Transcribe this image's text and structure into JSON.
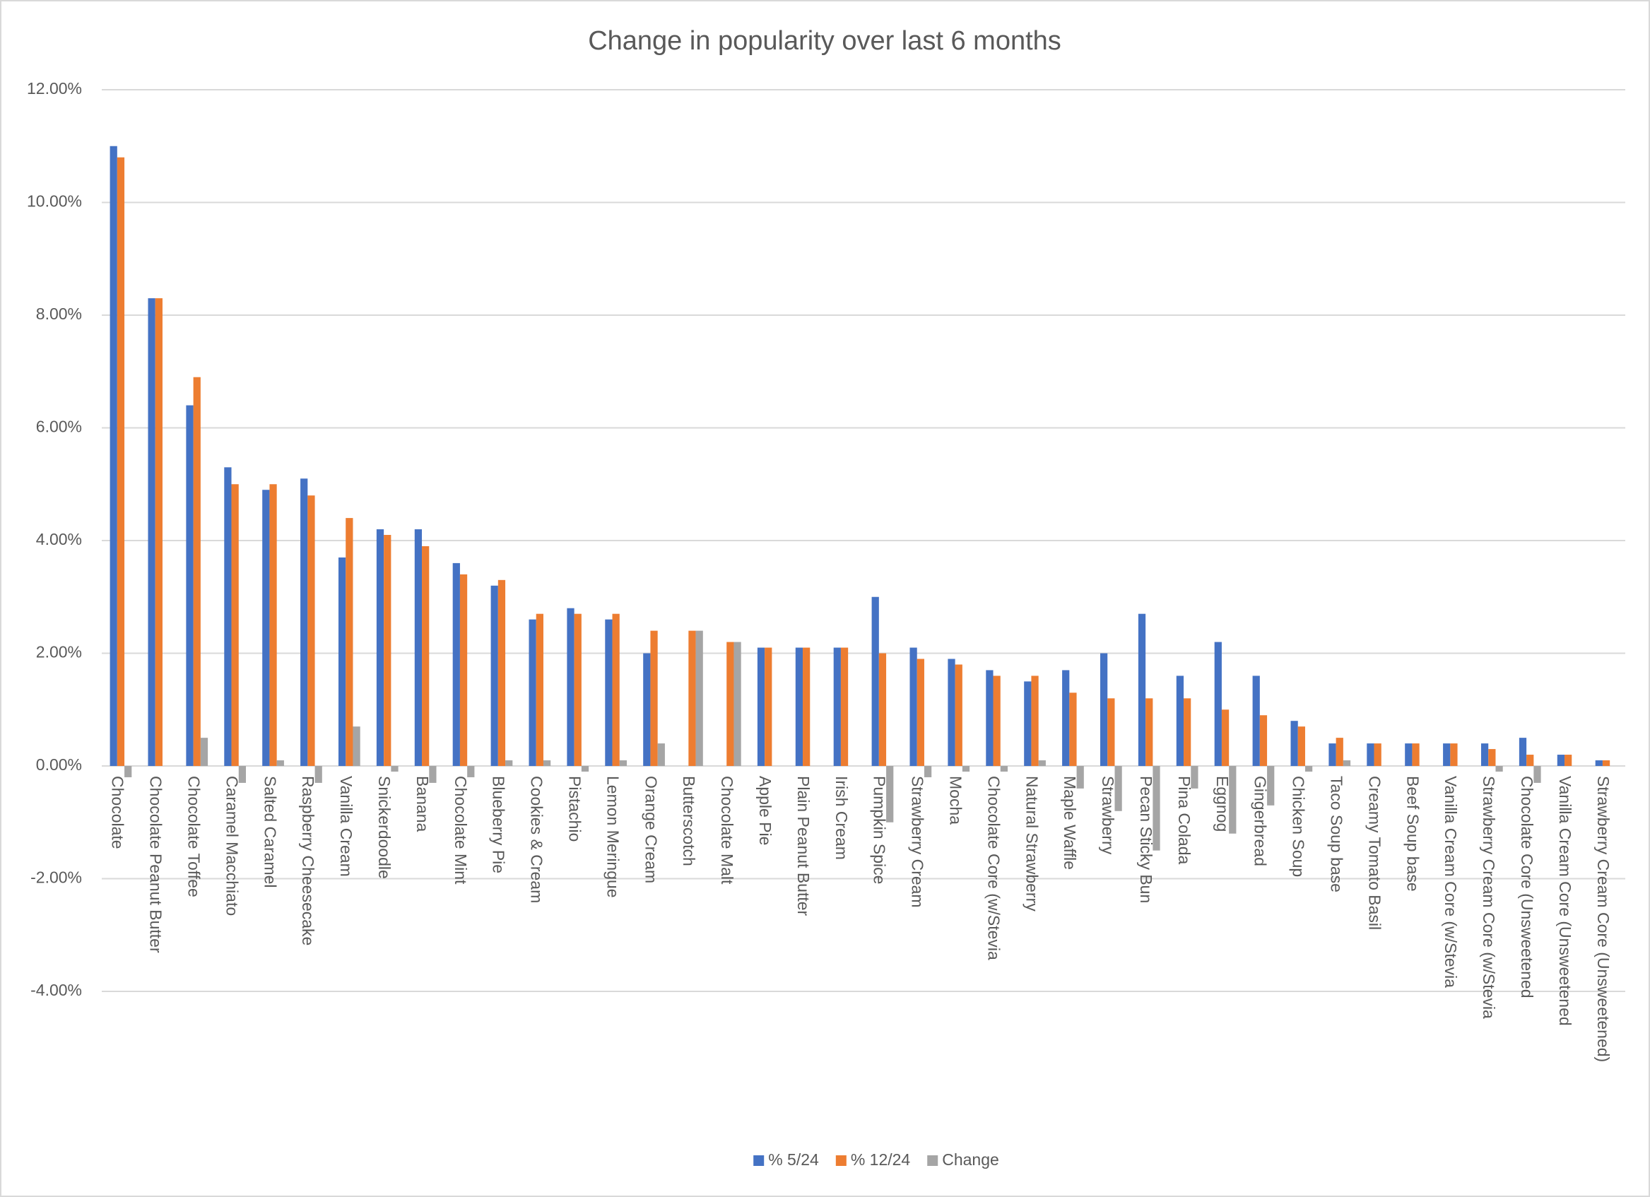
{
  "chart_data": {
    "type": "bar",
    "title": "Change in popularity over last 6 months",
    "categories": [
      "Chocolate",
      "Chocolate Peanut Butter",
      "Chocolate Toffee",
      "Caramel Macchiato",
      "Salted Caramel",
      "Raspberry Cheesecake",
      "Vanilla Cream",
      "Snickerdoodle",
      "Banana",
      "Chocolate Mint",
      "Blueberry Pie",
      "Cookies & Cream",
      "Pistachio",
      "Lemon Meringue",
      "Orange Cream",
      "Butterscotch",
      "Chocolate Malt",
      "Apple Pie",
      "Plain Peanut Butter",
      "Irish Cream",
      "Pumpkin Spice",
      "Strawberry Cream",
      "Mocha",
      "Chocolate Core (w/Stevia",
      "Natural Strawberry",
      "Maple Waffle",
      "Strawberry",
      "Pecan Sticky Bun",
      "Pina Colada",
      "Eggnog",
      "Gingerbread",
      "Chicken Soup",
      "Taco Soup base",
      "Creamy Tomato Basil",
      "Beef Soup base",
      "Vanilla Cream Core (w/Stevia",
      "Strawberry Cream Core (w/Stevia",
      "Chocolate Core (Unsweetened",
      "Vanilla Cream Core (Unsweetened",
      "Strawberry Cream Core (Unsweetened)"
    ],
    "series": [
      {
        "name": "% 5/24",
        "color": "#4472c4",
        "values": [
          11.0,
          8.3,
          6.4,
          5.3,
          4.9,
          5.1,
          3.7,
          4.2,
          4.2,
          3.6,
          3.2,
          2.6,
          2.8,
          2.6,
          2.0,
          0,
          0,
          2.1,
          2.1,
          2.1,
          3.0,
          2.1,
          1.9,
          1.7,
          1.5,
          1.7,
          2.0,
          2.7,
          1.6,
          2.2,
          1.6,
          0.8,
          0.4,
          0.4,
          0.4,
          0.4,
          0.4,
          0.5,
          0.2,
          0.1
        ]
      },
      {
        "name": "% 12/24",
        "color": "#ed7d31",
        "values": [
          10.8,
          8.3,
          6.9,
          5.0,
          5.0,
          4.8,
          4.4,
          4.1,
          3.9,
          3.4,
          3.3,
          2.7,
          2.7,
          2.7,
          2.4,
          2.4,
          2.2,
          2.1,
          2.1,
          2.1,
          2.0,
          1.9,
          1.8,
          1.6,
          1.6,
          1.3,
          1.2,
          1.2,
          1.2,
          1.0,
          0.9,
          0.7,
          0.5,
          0.4,
          0.4,
          0.4,
          0.3,
          0.2,
          0.2,
          0.1
        ]
      },
      {
        "name": "Change",
        "color": "#a5a5a5",
        "values": [
          -0.2,
          0,
          0.5,
          -0.3,
          0.1,
          -0.3,
          0.7,
          -0.1,
          -0.3,
          -0.2,
          0.1,
          0.1,
          -0.1,
          0.1,
          0.4,
          2.4,
          2.2,
          0,
          0,
          0,
          -1.0,
          -0.2,
          -0.1,
          -0.1,
          0.1,
          -0.4,
          -0.8,
          -1.5,
          -0.4,
          -1.2,
          -0.7,
          -0.1,
          0.1,
          0,
          0,
          0,
          -0.1,
          -0.3,
          0,
          0
        ]
      }
    ],
    "ylim": [
      -4,
      12
    ],
    "yticks": [
      {
        "value": -4,
        "label": "-4.00%"
      },
      {
        "value": -2,
        "label": "-2.00%"
      },
      {
        "value": 0,
        "label": "0.00%"
      },
      {
        "value": 2,
        "label": "2.00%"
      },
      {
        "value": 4,
        "label": "4.00%"
      },
      {
        "value": 6,
        "label": "6.00%"
      },
      {
        "value": 8,
        "label": "8.00%"
      },
      {
        "value": 10,
        "label": "10.00%"
      },
      {
        "value": 12,
        "label": "12.00%"
      }
    ],
    "grid": true,
    "legend": "bottom"
  }
}
